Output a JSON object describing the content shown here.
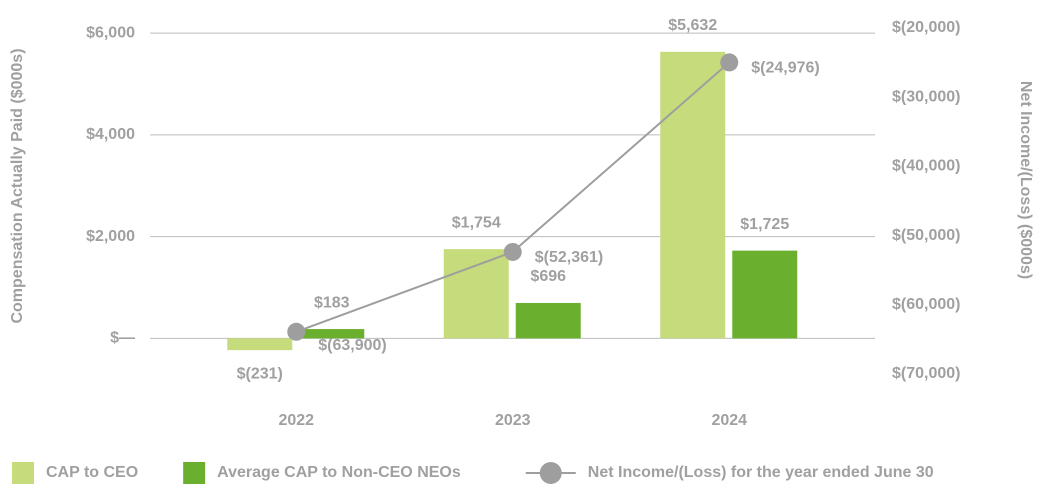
{
  "chart_data": {
    "type": "bar",
    "categories": [
      "2022",
      "2023",
      "2024"
    ],
    "y_label": "Compensation Actually Paid ($000s)",
    "y2_label": "Net Income/(Loss) ($000s)",
    "ylim": [
      -700,
      6100
    ],
    "yticks": [
      {
        "value": 0,
        "label": "$—"
      },
      {
        "value": 2000,
        "label": "$2,000"
      },
      {
        "value": 4000,
        "label": "$4,000"
      },
      {
        "value": 6000,
        "label": "$6,000"
      }
    ],
    "y2lim": [
      -70000,
      -20000
    ],
    "y2ticks": [
      {
        "value": -70000,
        "label": "$(70,000)"
      },
      {
        "value": -60000,
        "label": "$(60,000)"
      },
      {
        "value": -50000,
        "label": "$(50,000)"
      },
      {
        "value": -40000,
        "label": "$(40,000)"
      },
      {
        "value": -30000,
        "label": "$(30,000)"
      },
      {
        "value": -20000,
        "label": "$(20,000)"
      }
    ],
    "grid": true,
    "legend": "bottom",
    "series": [
      {
        "name": "CAP to CEO",
        "type": "bar",
        "color": "#c6dc7c",
        "values": [
          -231,
          1754,
          5632
        ],
        "value_labels": [
          "$(231)",
          "$1,754",
          "$5,632"
        ]
      },
      {
        "name": "Average CAP to Non-CEO NEOs",
        "type": "bar",
        "color": "#6ab02e",
        "values": [
          183,
          696,
          1725
        ],
        "value_labels": [
          "$183",
          "$696",
          "$1,725"
        ]
      },
      {
        "name": "Net Income/(Loss) for the year ended June 30",
        "type": "line",
        "axis": "y2",
        "color": "#9e9e9e",
        "values": [
          -63900,
          -52361,
          -24976
        ],
        "value_labels": [
          "$(63,900)",
          "$(52,361)",
          "$(24,976)"
        ]
      }
    ]
  }
}
